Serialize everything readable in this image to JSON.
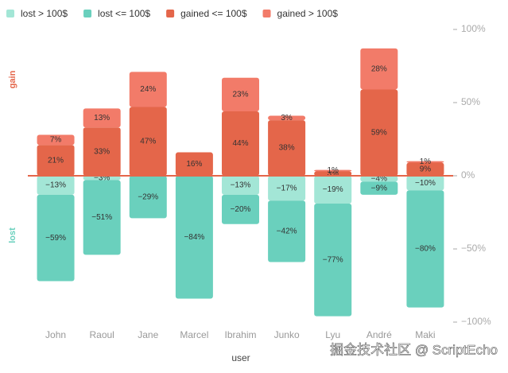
{
  "chart_data": {
    "type": "bar",
    "stacked": true,
    "x_label": "user",
    "y_label_positive": "gain",
    "y_label_negative": "lost",
    "watermark": "掘金技术社区 @ ScriptEcho",
    "categories": [
      "John",
      "Raoul",
      "Jane",
      "Marcel",
      "Ibrahim",
      "Junko",
      "Lyu",
      "André",
      "Maki"
    ],
    "series": [
      {
        "name": "lost > 100$",
        "color": "#a3e6d6",
        "values": [
          -13,
          -3,
          null,
          null,
          -13,
          -17,
          -19,
          -4,
          -10
        ],
        "value_labels": [
          "−13%",
          "−3%",
          null,
          null,
          "−13%",
          "−17%",
          "−19%",
          "−4%",
          "−10%"
        ]
      },
      {
        "name": "lost <= 100$",
        "color": "#6ad0bd",
        "values": [
          -59,
          -51,
          -29,
          -84,
          -20,
          -42,
          -77,
          -9,
          -80
        ],
        "value_labels": [
          "−59%",
          "−51%",
          "−29%",
          "−84%",
          "−20%",
          "−42%",
          "−77%",
          "−9%",
          "−80%"
        ]
      },
      {
        "name": "gained <= 100$",
        "color": "#e4664a",
        "values": [
          21,
          33,
          47,
          16,
          44,
          38,
          3,
          59,
          9
        ],
        "value_labels": [
          "21%",
          "33%",
          "47%",
          "16%",
          "44%",
          "38%",
          "3%",
          "59%",
          "9%"
        ]
      },
      {
        "name": "gained > 100$",
        "color": "#f27b69",
        "values": [
          7,
          13,
          24,
          null,
          23,
          3,
          1,
          28,
          1
        ],
        "value_labels": [
          "7%",
          "13%",
          "24%",
          null,
          "23%",
          "3%",
          "1%",
          "28%",
          "1%"
        ]
      }
    ],
    "ylim": [
      -100,
      100
    ],
    "yticks": [
      {
        "value": 100,
        "label": "100%"
      },
      {
        "value": 50,
        "label": "50%"
      },
      {
        "value": 0,
        "label": "0%"
      },
      {
        "value": -50,
        "label": "−50%"
      },
      {
        "value": -100,
        "label": "−100%"
      }
    ],
    "zero_line_color": "#e4664a"
  }
}
